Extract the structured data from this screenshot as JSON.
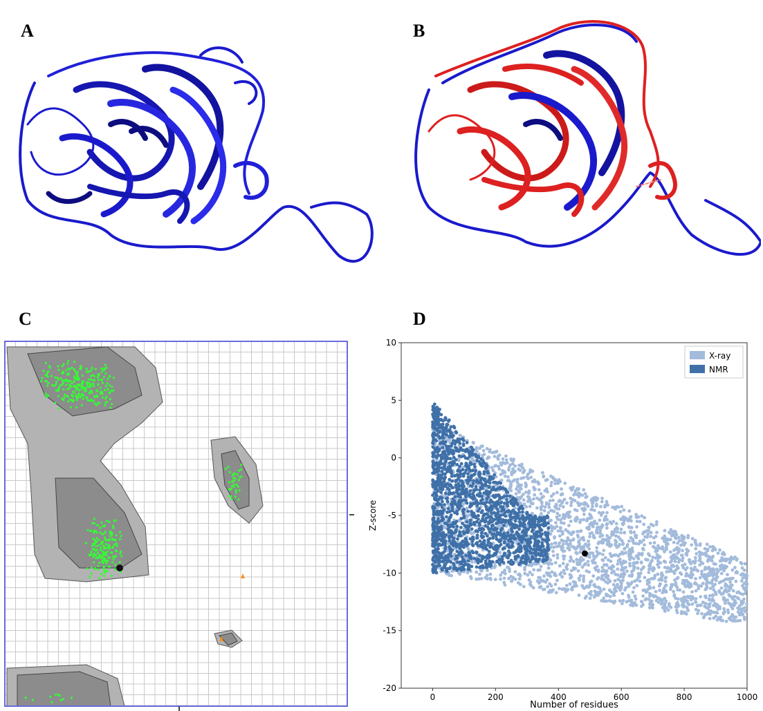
{
  "panels": {
    "a": {
      "letter": "A"
    },
    "b": {
      "letter": "B"
    },
    "c": {
      "letter": "C"
    },
    "d": {
      "letter": "D"
    }
  },
  "colors": {
    "model_blue": "#1a1acc",
    "template_red": "#dd2020",
    "xray": "#a3bbdb",
    "nmr": "#3f70a8",
    "favoured_region": "#8c8c8c",
    "allowed_region": "#b3b3b3",
    "residue_points": "#33ff33",
    "outlier_points": "#ff8c1a"
  },
  "chart_data": [
    {
      "type": "scatter",
      "panel": "C",
      "description_visible": "Ramachandran plot with residue points",
      "title": "",
      "xlabel": "",
      "ylabel": "",
      "grid": true,
      "clusters": [
        {
          "region": "beta",
          "count": 260
        },
        {
          "region": "alpha",
          "count": 170
        },
        {
          "region": "left-handed helix",
          "count": 35
        },
        {
          "region": "bottom",
          "count": 10
        }
      ],
      "outliers": 2
    },
    {
      "type": "scatter",
      "panel": "D",
      "title": "",
      "xlabel": "Number of residues",
      "ylabel": "Z-score",
      "xlim": [
        -100,
        1000
      ],
      "ylim": [
        -20,
        10
      ],
      "xticks": [
        0,
        200,
        400,
        600,
        800,
        1000
      ],
      "yticks": [
        -20,
        -15,
        -10,
        -5,
        0,
        5,
        10
      ],
      "legend": {
        "position": "top-right",
        "entries": [
          "X-ray",
          "NMR"
        ]
      },
      "series": [
        {
          "name": "X-ray",
          "band": {
            "x_range": [
              0,
              1000
            ],
            "upper_at_0": 3,
            "upper_at_1000": -9,
            "lower_at_0": -10,
            "lower_at_1000": -14.5
          }
        },
        {
          "name": "NMR",
          "band": {
            "x_range": [
              0,
              370
            ],
            "upper_at_0": 5,
            "lower_at_0": -10
          }
        }
      ],
      "highlight_point": {
        "x": 484,
        "y": -8.3
      }
    }
  ]
}
